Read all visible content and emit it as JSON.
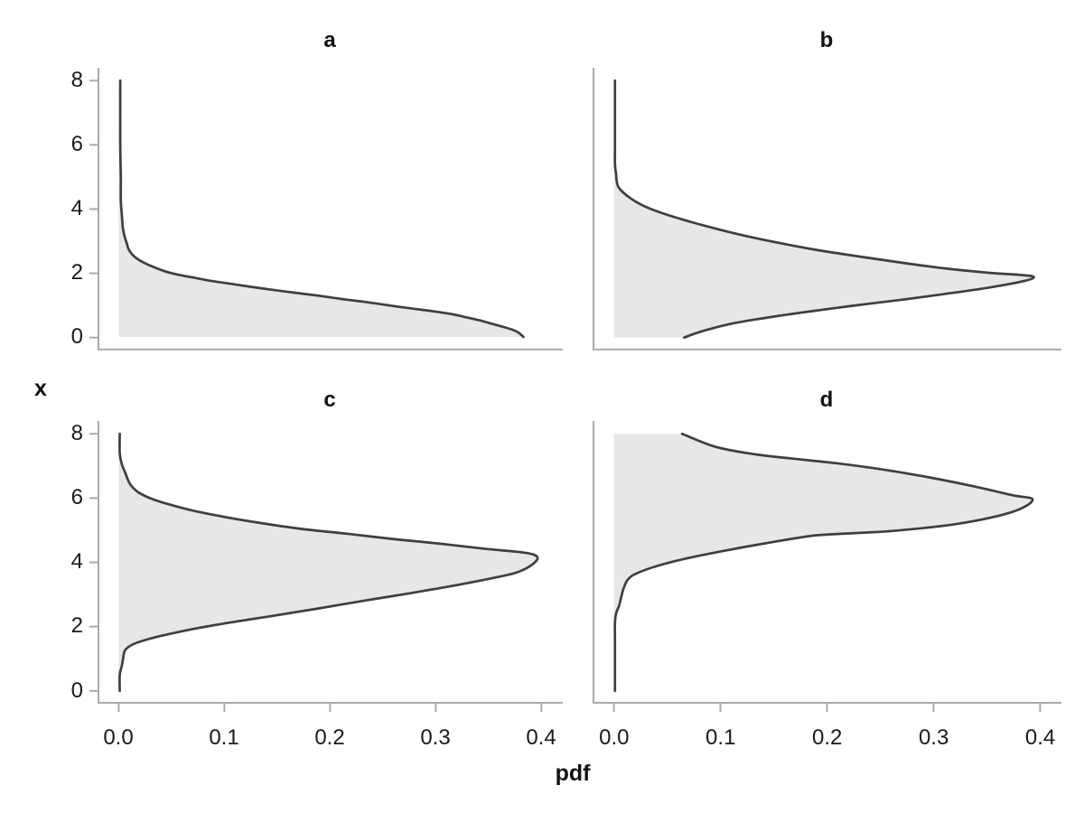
{
  "figure": {
    "background": "#ffffff"
  },
  "style": {
    "curve_color": "#3f3f3f",
    "fill_color": "#e7e7e7",
    "spine_color": "#aaaaaa",
    "text_color": "#1a1a1a",
    "curve_width": 2.7,
    "spine_width": 2,
    "tick_length": 9
  },
  "axes": {
    "xlabel": "pdf",
    "ylabel": "x",
    "pdf_ticks": {
      "labels": [
        "0.0",
        "0.1",
        "0.2",
        "0.3",
        "0.4"
      ],
      "values": [
        0,
        0.1,
        0.2,
        0.3,
        0.4
      ]
    },
    "x_ticks": {
      "labels": [
        "0",
        "2",
        "4",
        "6",
        "8"
      ],
      "values": [
        0,
        2,
        4,
        6,
        8
      ]
    },
    "pdf_range": [
      -0.02,
      0.42
    ],
    "x_range": [
      -0.4,
      8.4
    ],
    "grid": false,
    "legend": "none"
  },
  "chart_data": [
    {
      "type": "area",
      "title": "a",
      "xlabel": "pdf",
      "ylabel": "x",
      "note": "density hugging x=0; pdf(0)=0.383, long shoulder to x=2.7, near-zero above x=3",
      "points_pdf_x": [
        [
          0.0015,
          8.0
        ],
        [
          0.0015,
          6.0
        ],
        [
          0.002,
          5.0
        ],
        [
          0.002,
          4.3
        ],
        [
          0.003,
          3.8
        ],
        [
          0.004,
          3.4
        ],
        [
          0.006,
          3.1
        ],
        [
          0.008,
          2.9
        ],
        [
          0.009,
          2.78
        ],
        [
          0.013,
          2.58
        ],
        [
          0.019,
          2.42
        ],
        [
          0.029,
          2.25
        ],
        [
          0.044,
          2.06
        ],
        [
          0.057,
          1.95
        ],
        [
          0.072,
          1.86
        ],
        [
          0.088,
          1.76
        ],
        [
          0.107,
          1.67
        ],
        [
          0.125,
          1.58
        ],
        [
          0.147,
          1.48
        ],
        [
          0.168,
          1.39
        ],
        [
          0.19,
          1.3
        ],
        [
          0.211,
          1.2
        ],
        [
          0.233,
          1.11
        ],
        [
          0.254,
          1.01
        ],
        [
          0.276,
          0.91
        ],
        [
          0.297,
          0.82
        ],
        [
          0.315,
          0.73
        ],
        [
          0.329,
          0.63
        ],
        [
          0.341,
          0.54
        ],
        [
          0.352,
          0.44
        ],
        [
          0.363,
          0.34
        ],
        [
          0.372,
          0.25
        ],
        [
          0.378,
          0.16
        ],
        [
          0.381,
          0.08
        ],
        [
          0.383,
          0.02
        ]
      ]
    },
    {
      "type": "area",
      "title": "b",
      "xlabel": "pdf",
      "ylabel": "x",
      "note": "peak pdf 0.394 at x=1.9; truncated at x=0 with pdf 0.066; near-zero above x=5",
      "points_pdf_x": [
        [
          0.001,
          8.0
        ],
        [
          0.001,
          6.0
        ],
        [
          0.001,
          5.4
        ],
        [
          0.002,
          5.1
        ],
        [
          0.004,
          4.7
        ],
        [
          0.013,
          4.4
        ],
        [
          0.026,
          4.13
        ],
        [
          0.043,
          3.9
        ],
        [
          0.065,
          3.67
        ],
        [
          0.091,
          3.43
        ],
        [
          0.119,
          3.2
        ],
        [
          0.153,
          2.96
        ],
        [
          0.19,
          2.73
        ],
        [
          0.227,
          2.54
        ],
        [
          0.266,
          2.35
        ],
        [
          0.309,
          2.16
        ],
        [
          0.351,
          2.02
        ],
        [
          0.381,
          1.95
        ],
        [
          0.394,
          1.89
        ],
        [
          0.385,
          1.76
        ],
        [
          0.351,
          1.55
        ],
        [
          0.309,
          1.35
        ],
        [
          0.266,
          1.16
        ],
        [
          0.224,
          0.99
        ],
        [
          0.181,
          0.8
        ],
        [
          0.142,
          0.61
        ],
        [
          0.11,
          0.43
        ],
        [
          0.082,
          0.19
        ],
        [
          0.066,
          0.0
        ]
      ]
    },
    {
      "type": "area",
      "title": "c",
      "xlabel": "pdf",
      "ylabel": "x",
      "note": "bell centered at x=4.17, peak pdf 0.397; small wiggles near x=7 and x=1",
      "points_pdf_x": [
        [
          0.001,
          8.0
        ],
        [
          0.001,
          7.4
        ],
        [
          0.003,
          7.05
        ],
        [
          0.006,
          6.8
        ],
        [
          0.009,
          6.55
        ],
        [
          0.012,
          6.38
        ],
        [
          0.019,
          6.17
        ],
        [
          0.031,
          5.98
        ],
        [
          0.048,
          5.8
        ],
        [
          0.07,
          5.61
        ],
        [
          0.099,
          5.42
        ],
        [
          0.133,
          5.23
        ],
        [
          0.173,
          5.04
        ],
        [
          0.216,
          4.89
        ],
        [
          0.261,
          4.72
        ],
        [
          0.304,
          4.58
        ],
        [
          0.347,
          4.42
        ],
        [
          0.384,
          4.3
        ],
        [
          0.396,
          4.17
        ],
        [
          0.392,
          3.95
        ],
        [
          0.378,
          3.7
        ],
        [
          0.361,
          3.56
        ],
        [
          0.318,
          3.28
        ],
        [
          0.276,
          3.04
        ],
        [
          0.233,
          2.81
        ],
        [
          0.19,
          2.57
        ],
        [
          0.147,
          2.34
        ],
        [
          0.11,
          2.15
        ],
        [
          0.076,
          1.96
        ],
        [
          0.048,
          1.77
        ],
        [
          0.028,
          1.61
        ],
        [
          0.013,
          1.44
        ],
        [
          0.006,
          1.26
        ],
        [
          0.004,
          0.97
        ],
        [
          0.003,
          0.78
        ],
        [
          0.001,
          0.5
        ],
        [
          0.001,
          0.0
        ]
      ]
    },
    {
      "type": "area",
      "title": "d",
      "xlabel": "pdf",
      "ylabel": "x",
      "note": "peak pdf 0.393 at x=5.95; truncated at x=8 with pdf 0.064; thin tail to x=0",
      "points_pdf_x": [
        [
          0.064,
          8.0
        ],
        [
          0.096,
          7.59
        ],
        [
          0.133,
          7.36
        ],
        [
          0.17,
          7.22
        ],
        [
          0.21,
          7.08
        ],
        [
          0.252,
          6.89
        ],
        [
          0.295,
          6.65
        ],
        [
          0.337,
          6.37
        ],
        [
          0.374,
          6.09
        ],
        [
          0.393,
          5.95
        ],
        [
          0.374,
          5.57
        ],
        [
          0.323,
          5.2
        ],
        [
          0.266,
          4.99
        ],
        [
          0.227,
          4.91
        ],
        [
          0.187,
          4.83
        ],
        [
          0.142,
          4.59
        ],
        [
          0.102,
          4.35
        ],
        [
          0.068,
          4.12
        ],
        [
          0.04,
          3.88
        ],
        [
          0.021,
          3.65
        ],
        [
          0.013,
          3.46
        ],
        [
          0.009,
          3.18
        ],
        [
          0.006,
          2.8
        ],
        [
          0.005,
          2.66
        ],
        [
          0.002,
          2.4
        ],
        [
          0.001,
          2.1
        ],
        [
          0.001,
          1.5
        ],
        [
          0.001,
          0.0
        ]
      ]
    }
  ]
}
